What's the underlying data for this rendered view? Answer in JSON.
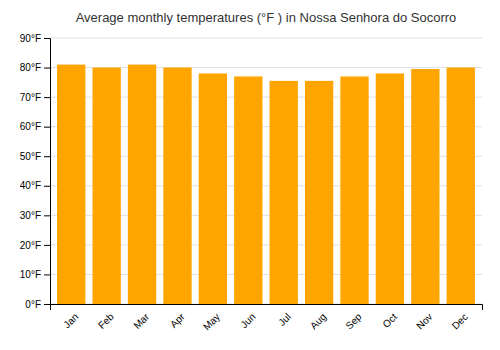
{
  "chart_data": {
    "type": "bar",
    "title": "Average monthly temperatures (°F ) in Nossa Senhora do Socorro",
    "categories": [
      "Jan",
      "Feb",
      "Mar",
      "Apr",
      "May",
      "Jun",
      "Jul",
      "Aug",
      "Sep",
      "Oct",
      "Nov",
      "Dec"
    ],
    "values": [
      81,
      80,
      81,
      80,
      78,
      77,
      75.5,
      75.5,
      77,
      78,
      79.5,
      80
    ],
    "color": "#FFA500",
    "ylim": [
      0,
      90
    ],
    "yticks": [
      {
        "value": 0,
        "label": "0°F"
      },
      {
        "value": 10,
        "label": "10°F"
      },
      {
        "value": 20,
        "label": "20°F"
      },
      {
        "value": 30,
        "label": "30°F"
      },
      {
        "value": 40,
        "label": "40°F"
      },
      {
        "value": 50,
        "label": "50°F"
      },
      {
        "value": 60,
        "label": "60°F"
      },
      {
        "value": 70,
        "label": "70°F"
      },
      {
        "value": 80,
        "label": "80°F"
      },
      {
        "value": 90,
        "label": "90°F"
      }
    ],
    "grid": true
  }
}
